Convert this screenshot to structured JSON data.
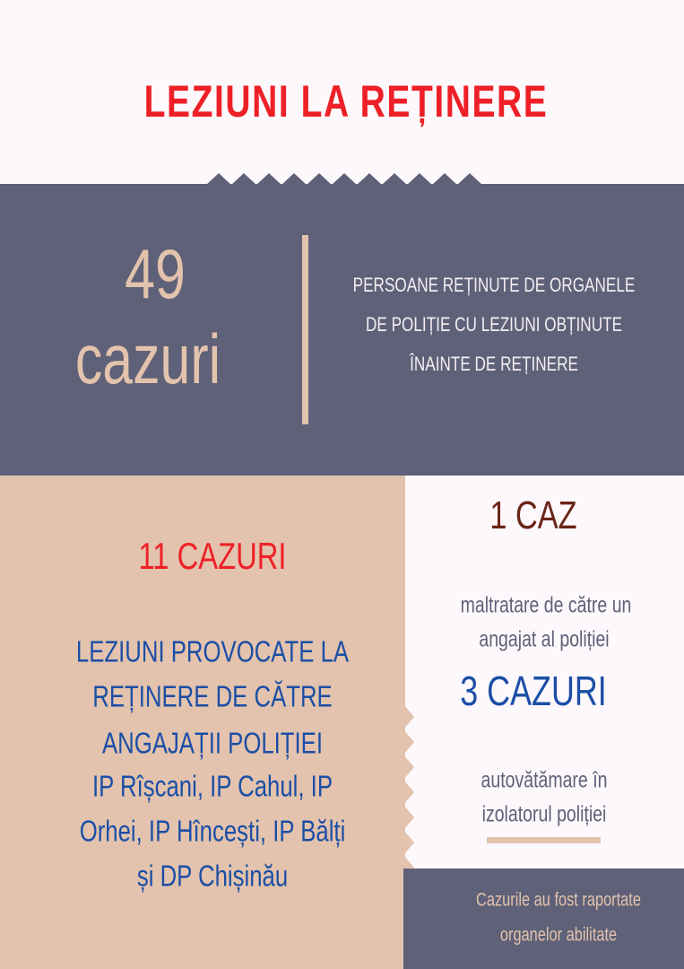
{
  "title": "LEZIUNI LA REȚINERE",
  "colors": {
    "background": "#fdf8fc",
    "dark": "#5f6178",
    "tan": "#e3c3ad",
    "red": "#ee2027",
    "blue": "#1b4ea6",
    "brown": "#6a2418"
  },
  "summary": {
    "number": "49",
    "unit": "cazuri",
    "description": [
      "PERSOANE REȚINUTE DE ORGANELE",
      "DE POLIȚIE CU LEZIUNI OBȚINUTE",
      "ÎNAINTE DE REȚINERE"
    ]
  },
  "left_panel": {
    "count": "11 CAZURI",
    "lines": [
      "LEZIUNI PROVOCATE LA",
      "REȚINERE DE CĂTRE",
      "ANGAJAȚII POLIȚIEI",
      "IP Rîșcani, IP Cahul, IP",
      "Orhei, IP Hîncești, IP Bălți",
      "și DP Chișinău"
    ]
  },
  "right_panel": {
    "count1": "1 CAZ",
    "text1": [
      "maltratare de către un",
      "angajat al poliției"
    ],
    "count2": "3 CAZURI",
    "text2": [
      "autovătămare în",
      "izolatorul poliției"
    ]
  },
  "footer_note": [
    "Cazurile au fost raportate",
    "organelor abilitate"
  ]
}
